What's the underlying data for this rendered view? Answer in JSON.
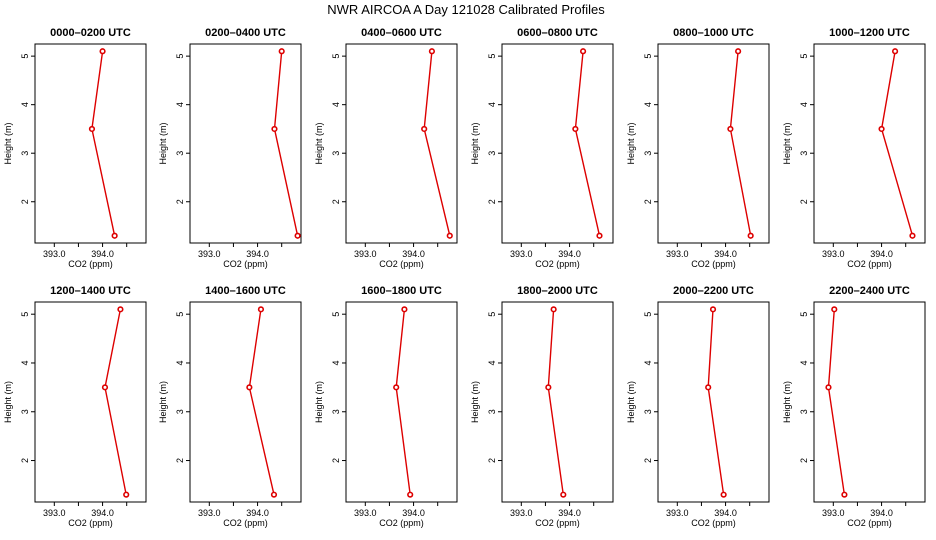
{
  "figure": {
    "title": "NWR AIRCOA A  Day 121028  Calibrated Profiles"
  },
  "style": {
    "series_color": "#dd0000",
    "axis_color": "#000000",
    "background": "#ffffff"
  },
  "chart_data": [
    {
      "type": "line",
      "title": "0000–0200 UTC",
      "xlabel": "CO2 (ppm)",
      "ylabel": "Height (m)",
      "xlim": [
        392.6,
        394.9
      ],
      "ylim": [
        1.15,
        5.25
      ],
      "xticks": [
        393.0,
        393.5,
        394.0,
        394.5
      ],
      "xticklabels": [
        "393.0",
        "",
        "394.0",
        ""
      ],
      "yticks": [
        2,
        3,
        4,
        5
      ],
      "yticklabels": [
        "2",
        "3",
        "4",
        "5"
      ],
      "grid": false,
      "legend": "none",
      "series": [
        {
          "x": [
            394.25,
            393.78,
            394.0
          ],
          "y": [
            1.3,
            3.5,
            5.1
          ]
        }
      ]
    },
    {
      "type": "line",
      "title": "0200–0400 UTC",
      "xlabel": "CO2 (ppm)",
      "ylabel": "Height (m)",
      "xlim": [
        392.6,
        394.9
      ],
      "ylim": [
        1.15,
        5.25
      ],
      "xticks": [
        393.0,
        393.5,
        394.0,
        394.5
      ],
      "xticklabels": [
        "393.0",
        "",
        "394.0",
        ""
      ],
      "yticks": [
        2,
        3,
        4,
        5
      ],
      "yticklabels": [
        "2",
        "3",
        "4",
        "5"
      ],
      "grid": false,
      "legend": "none",
      "series": [
        {
          "x": [
            394.83,
            394.35,
            394.5
          ],
          "y": [
            1.3,
            3.5,
            5.1
          ]
        }
      ]
    },
    {
      "type": "line",
      "title": "0400–0600 UTC",
      "xlabel": "CO2 (ppm)",
      "ylabel": "Height (m)",
      "xlim": [
        392.6,
        394.9
      ],
      "ylim": [
        1.15,
        5.25
      ],
      "xticks": [
        393.0,
        393.5,
        394.0,
        394.5
      ],
      "xticklabels": [
        "393.0",
        "",
        "394.0",
        ""
      ],
      "yticks": [
        2,
        3,
        4,
        5
      ],
      "yticklabels": [
        "2",
        "3",
        "4",
        "5"
      ],
      "grid": false,
      "legend": "none",
      "series": [
        {
          "x": [
            394.75,
            394.22,
            394.38
          ],
          "y": [
            1.3,
            3.5,
            5.1
          ]
        }
      ]
    },
    {
      "type": "line",
      "title": "0600–0800 UTC",
      "xlabel": "CO2 (ppm)",
      "ylabel": "Height (m)",
      "xlim": [
        392.6,
        394.9
      ],
      "ylim": [
        1.15,
        5.25
      ],
      "xticks": [
        393.0,
        393.5,
        394.0,
        394.5
      ],
      "xticklabels": [
        "393.0",
        "",
        "394.0",
        ""
      ],
      "yticks": [
        2,
        3,
        4,
        5
      ],
      "yticklabels": [
        "2",
        "3",
        "4",
        "5"
      ],
      "grid": false,
      "legend": "none",
      "series": [
        {
          "x": [
            394.62,
            394.12,
            394.28
          ],
          "y": [
            1.3,
            3.5,
            5.1
          ]
        }
      ]
    },
    {
      "type": "line",
      "title": "0800–1000 UTC",
      "xlabel": "CO2 (ppm)",
      "ylabel": "Height (m)",
      "xlim": [
        392.6,
        394.9
      ],
      "ylim": [
        1.15,
        5.25
      ],
      "xticks": [
        393.0,
        393.5,
        394.0,
        394.5
      ],
      "xticklabels": [
        "393.0",
        "",
        "394.0",
        ""
      ],
      "yticks": [
        2,
        3,
        4,
        5
      ],
      "yticklabels": [
        "2",
        "3",
        "4",
        "5"
      ],
      "grid": false,
      "legend": "none",
      "series": [
        {
          "x": [
            394.52,
            394.1,
            394.26
          ],
          "y": [
            1.3,
            3.5,
            5.1
          ]
        }
      ]
    },
    {
      "type": "line",
      "title": "1000–1200 UTC",
      "xlabel": "CO2 (ppm)",
      "ylabel": "Height (m)",
      "xlim": [
        392.6,
        394.9
      ],
      "ylim": [
        1.15,
        5.25
      ],
      "xticks": [
        393.0,
        393.5,
        394.0,
        394.5
      ],
      "xticklabels": [
        "393.0",
        "",
        "394.0",
        ""
      ],
      "yticks": [
        2,
        3,
        4,
        5
      ],
      "yticklabels": [
        "2",
        "3",
        "4",
        "5"
      ],
      "grid": false,
      "legend": "none",
      "series": [
        {
          "x": [
            394.64,
            394.0,
            394.28
          ],
          "y": [
            1.3,
            3.5,
            5.1
          ]
        }
      ]
    },
    {
      "type": "line",
      "title": "1200–1400 UTC",
      "xlabel": "CO2 (ppm)",
      "ylabel": "Height (m)",
      "xlim": [
        392.6,
        394.9
      ],
      "ylim": [
        1.15,
        5.25
      ],
      "xticks": [
        393.0,
        393.5,
        394.0,
        394.5
      ],
      "xticklabels": [
        "393.0",
        "",
        "394.0",
        ""
      ],
      "yticks": [
        2,
        3,
        4,
        5
      ],
      "yticklabels": [
        "2",
        "3",
        "4",
        "5"
      ],
      "grid": false,
      "legend": "none",
      "series": [
        {
          "x": [
            394.49,
            394.05,
            394.37
          ],
          "y": [
            1.3,
            3.5,
            5.1
          ]
        }
      ]
    },
    {
      "type": "line",
      "title": "1400–1600 UTC",
      "xlabel": "CO2 (ppm)",
      "ylabel": "Height (m)",
      "xlim": [
        392.6,
        394.9
      ],
      "ylim": [
        1.15,
        5.25
      ],
      "xticks": [
        393.0,
        393.5,
        394.0,
        394.5
      ],
      "xticklabels": [
        "393.0",
        "",
        "394.0",
        ""
      ],
      "yticks": [
        2,
        3,
        4,
        5
      ],
      "yticklabels": [
        "2",
        "3",
        "4",
        "5"
      ],
      "grid": false,
      "legend": "none",
      "series": [
        {
          "x": [
            394.34,
            393.83,
            394.07
          ],
          "y": [
            1.3,
            3.5,
            5.1
          ]
        }
      ]
    },
    {
      "type": "line",
      "title": "1600–1800 UTC",
      "xlabel": "CO2 (ppm)",
      "ylabel": "Height (m)",
      "xlim": [
        392.6,
        394.9
      ],
      "ylim": [
        1.15,
        5.25
      ],
      "xticks": [
        393.0,
        393.5,
        394.0,
        394.5
      ],
      "xticklabels": [
        "393.0",
        "",
        "394.0",
        ""
      ],
      "yticks": [
        2,
        3,
        4,
        5
      ],
      "yticklabels": [
        "2",
        "3",
        "4",
        "5"
      ],
      "grid": false,
      "legend": "none",
      "series": [
        {
          "x": [
            393.93,
            393.64,
            393.81
          ],
          "y": [
            1.3,
            3.5,
            5.1
          ]
        }
      ]
    },
    {
      "type": "line",
      "title": "1800–2000 UTC",
      "xlabel": "CO2 (ppm)",
      "ylabel": "Height (m)",
      "xlim": [
        392.6,
        394.9
      ],
      "ylim": [
        1.15,
        5.25
      ],
      "xticks": [
        393.0,
        393.5,
        394.0,
        394.5
      ],
      "xticklabels": [
        "393.0",
        "",
        "394.0",
        ""
      ],
      "yticks": [
        2,
        3,
        4,
        5
      ],
      "yticklabels": [
        "2",
        "3",
        "4",
        "5"
      ],
      "grid": false,
      "legend": "none",
      "series": [
        {
          "x": [
            393.87,
            393.56,
            393.67
          ],
          "y": [
            1.3,
            3.5,
            5.1
          ]
        }
      ]
    },
    {
      "type": "line",
      "title": "2000–2200 UTC",
      "xlabel": "CO2 (ppm)",
      "ylabel": "Height (m)",
      "xlim": [
        392.6,
        394.9
      ],
      "ylim": [
        1.15,
        5.25
      ],
      "xticks": [
        393.0,
        393.5,
        394.0,
        394.5
      ],
      "xticklabels": [
        "393.0",
        "",
        "394.0",
        ""
      ],
      "yticks": [
        2,
        3,
        4,
        5
      ],
      "yticklabels": [
        "2",
        "3",
        "4",
        "5"
      ],
      "grid": false,
      "legend": "none",
      "series": [
        {
          "x": [
            393.96,
            393.64,
            393.74
          ],
          "y": [
            1.3,
            3.5,
            5.1
          ]
        }
      ]
    },
    {
      "type": "line",
      "title": "2200–2400 UTC",
      "xlabel": "CO2 (ppm)",
      "ylabel": "Height (m)",
      "xlim": [
        392.6,
        394.9
      ],
      "ylim": [
        1.15,
        5.25
      ],
      "xticks": [
        393.0,
        393.5,
        394.0,
        394.5
      ],
      "xticklabels": [
        "393.0",
        "",
        "394.0",
        ""
      ],
      "yticks": [
        2,
        3,
        4,
        5
      ],
      "yticklabels": [
        "2",
        "3",
        "4",
        "5"
      ],
      "grid": false,
      "legend": "none",
      "series": [
        {
          "x": [
            393.23,
            392.9,
            393.02
          ],
          "y": [
            1.3,
            3.5,
            5.1
          ]
        }
      ]
    }
  ]
}
